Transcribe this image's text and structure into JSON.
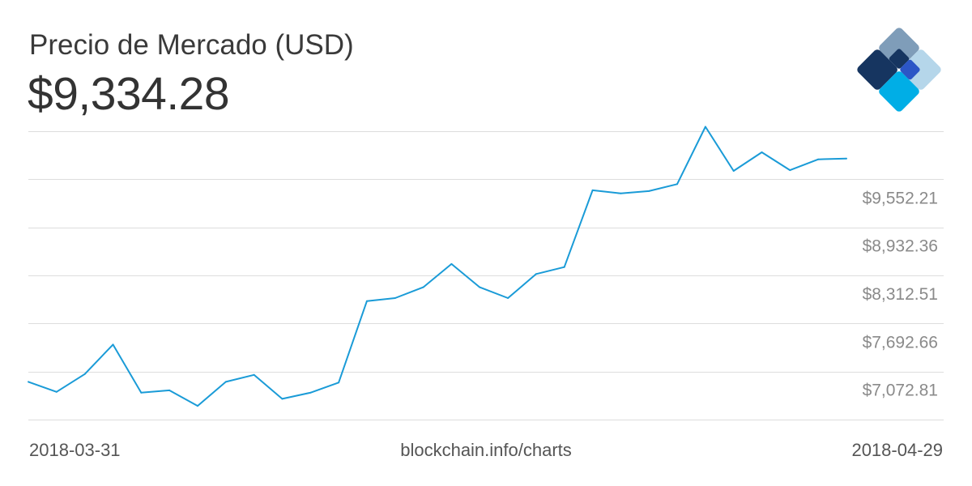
{
  "header": {
    "title": "Precio de Mercado (USD)",
    "current_price": "$9,334.28"
  },
  "footer": {
    "start_date": "2018-03-31",
    "source": "blockchain.info/charts",
    "end_date": "2018-04-29"
  },
  "logo": {
    "icon": "blockchain-diamond-icon",
    "colors": [
      "#7f9db9",
      "#163560",
      "#2c56c6",
      "#b5d6ea",
      "#00aee6"
    ]
  },
  "colors": {
    "line": "#1a9bd7",
    "grid": "#dddddd",
    "tick_text": "#8a8a8a"
  },
  "chart_data": {
    "type": "line",
    "title": "Precio de Mercado (USD)",
    "x": [
      "2018-03-31",
      "2018-04-01",
      "2018-04-02",
      "2018-04-03",
      "2018-04-04",
      "2018-04-05",
      "2018-04-06",
      "2018-04-07",
      "2018-04-08",
      "2018-04-09",
      "2018-04-10",
      "2018-04-11",
      "2018-04-12",
      "2018-04-13",
      "2018-04-14",
      "2018-04-15",
      "2018-04-16",
      "2018-04-17",
      "2018-04-18",
      "2018-04-19",
      "2018-04-20",
      "2018-04-21",
      "2018-04-22",
      "2018-04-23",
      "2018-04-24",
      "2018-04-25",
      "2018-04-26",
      "2018-04-27",
      "2018-04-28",
      "2018-04-29"
    ],
    "series": [
      {
        "values": [
          6940,
          6810,
          7040,
          7420,
          6800,
          6830,
          6630,
          6940,
          7030,
          6720,
          6800,
          6930,
          7980,
          8020,
          8160,
          8460,
          8160,
          8020,
          8330,
          8420,
          9410,
          9370,
          9400,
          9490,
          10230,
          9660,
          9900,
          9670,
          9810,
          9820
        ]
      }
    ],
    "y_ticks": [
      "$9,552.21",
      "$8,932.36",
      "$8,312.51",
      "$7,692.66",
      "$7,072.81"
    ],
    "y_tick_values": [
      9552.21,
      8932.36,
      8312.51,
      7692.66,
      7072.81
    ],
    "ylim": [
      6452.96,
      10172.06
    ],
    "grid": true,
    "grid_axis": "y",
    "tick_position": "right",
    "legend": "none"
  }
}
